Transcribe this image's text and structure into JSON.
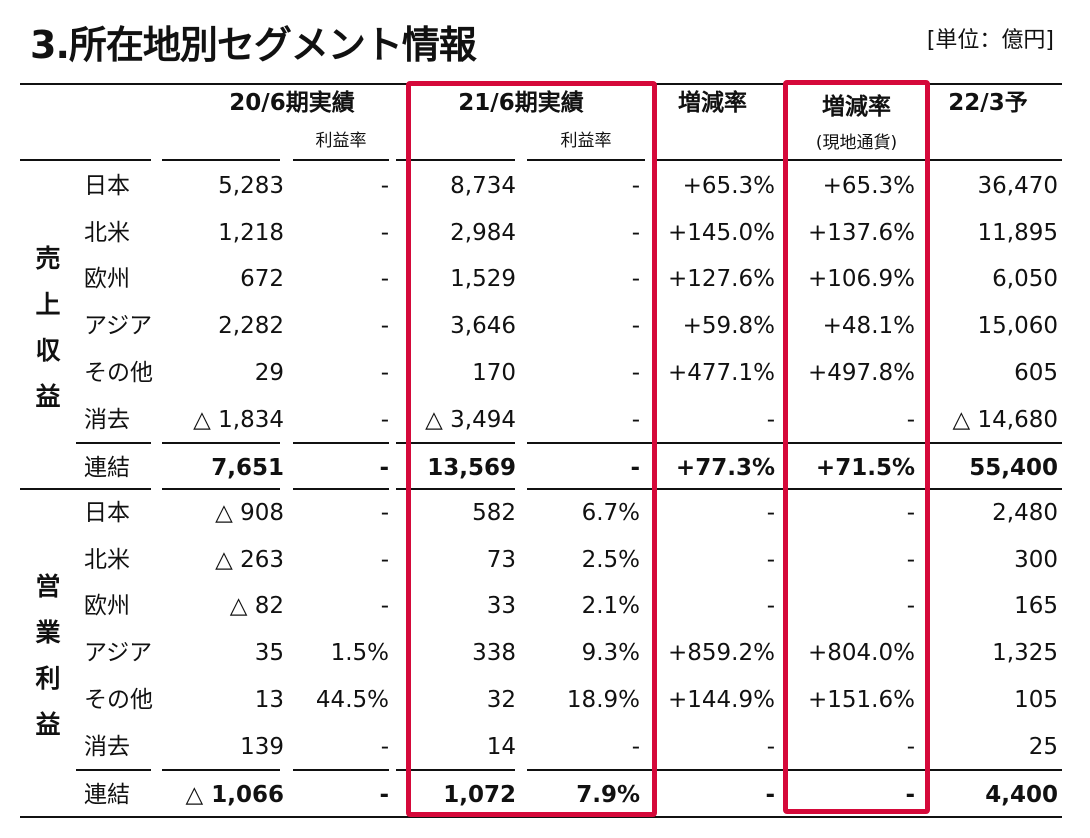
{
  "title": "3.所在地別セグメント情報",
  "unit": "[単位：億円]",
  "highlight_color": "#d5093a",
  "header": {
    "col_2006": "20/6期実績",
    "col_2006_margin": "利益率",
    "col_2106": "21/6期実績",
    "col_2106_margin": "利益率",
    "col_change": "増減率",
    "col_change_local": "増減率",
    "col_change_local_sub": "(現地通貨)",
    "col_2203": "22/3予"
  },
  "sections": [
    {
      "label": [
        "売",
        "上",
        "収",
        "益"
      ],
      "rows": [
        {
          "region": "日本",
          "v2006": "5,283",
          "m2006": "-",
          "v2106": "8,734",
          "m2106": "-",
          "chg": "+65.3%",
          "chg_local": "+65.3%",
          "f2203": "36,470"
        },
        {
          "region": "北米",
          "v2006": "1,218",
          "m2006": "-",
          "v2106": "2,984",
          "m2106": "-",
          "chg": "+145.0%",
          "chg_local": "+137.6%",
          "f2203": "11,895"
        },
        {
          "region": "欧州",
          "v2006": "672",
          "m2006": "-",
          "v2106": "1,529",
          "m2106": "-",
          "chg": "+127.6%",
          "chg_local": "+106.9%",
          "f2203": "6,050"
        },
        {
          "region": "アジア",
          "v2006": "2,282",
          "m2006": "-",
          "v2106": "3,646",
          "m2106": "-",
          "chg": "+59.8%",
          "chg_local": "+48.1%",
          "f2203": "15,060"
        },
        {
          "region": "その他",
          "v2006": "29",
          "m2006": "-",
          "v2106": "170",
          "m2106": "-",
          "chg": "+477.1%",
          "chg_local": "+497.8%",
          "f2203": "605"
        },
        {
          "region": "消去",
          "v2006": "△ 1,834",
          "m2006": "-",
          "v2106": "△ 3,494",
          "m2106": "-",
          "chg": "-",
          "chg_local": "-",
          "f2203": "△ 14,680"
        }
      ],
      "total": {
        "region": "連結",
        "v2006": "7,651",
        "m2006": "-",
        "v2106": "13,569",
        "m2106": "-",
        "chg": "+77.3%",
        "chg_local": "+71.5%",
        "f2203": "55,400"
      }
    },
    {
      "label": [
        "営",
        "業",
        "利",
        "益"
      ],
      "rows": [
        {
          "region": "日本",
          "v2006": "△ 908",
          "m2006": "-",
          "v2106": "582",
          "m2106": "6.7%",
          "chg": "-",
          "chg_local": "-",
          "f2203": "2,480"
        },
        {
          "region": "北米",
          "v2006": "△ 263",
          "m2006": "-",
          "v2106": "73",
          "m2106": "2.5%",
          "chg": "-",
          "chg_local": "-",
          "f2203": "300"
        },
        {
          "region": "欧州",
          "v2006": "△ 82",
          "m2006": "-",
          "v2106": "33",
          "m2106": "2.1%",
          "chg": "-",
          "chg_local": "-",
          "f2203": "165"
        },
        {
          "region": "アジア",
          "v2006": "35",
          "m2006": "1.5%",
          "v2106": "338",
          "m2106": "9.3%",
          "chg": "+859.2%",
          "chg_local": "+804.0%",
          "f2203": "1,325"
        },
        {
          "region": "その他",
          "v2006": "13",
          "m2006": "44.5%",
          "v2106": "32",
          "m2106": "18.9%",
          "chg": "+144.9%",
          "chg_local": "+151.6%",
          "f2203": "105"
        },
        {
          "region": "消去",
          "v2006": "139",
          "m2006": "-",
          "v2106": "14",
          "m2106": "-",
          "chg": "-",
          "chg_local": "-",
          "f2203": "25"
        }
      ],
      "total": {
        "region": "連結",
        "v2006": "△ 1,066",
        "m2006": "-",
        "v2106": "1,072",
        "m2106": "7.9%",
        "chg": "-",
        "chg_local": "-",
        "f2203": "4,400"
      }
    }
  ]
}
